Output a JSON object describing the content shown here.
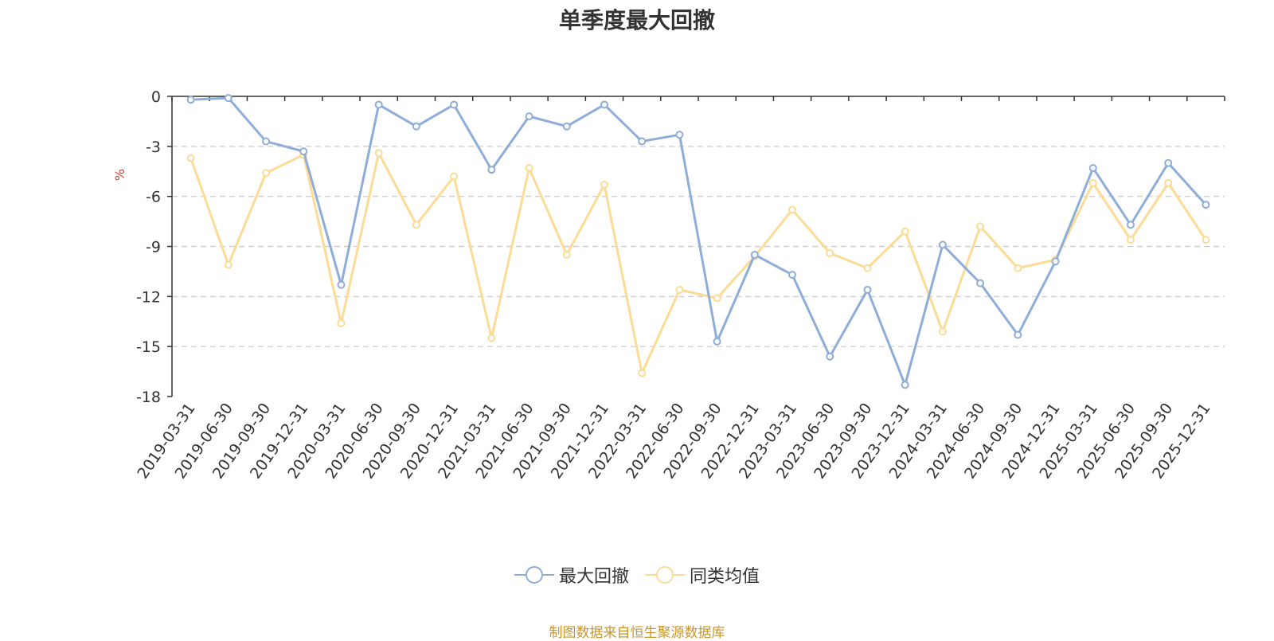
{
  "title": "单季度最大回撤",
  "source_note": "制图数据来自恒生聚源数据库",
  "colors": {
    "series_max_drawdown": "#8fadd9",
    "series_peer_avg": "#fcdb95",
    "unit_label": "#e53935",
    "source_note": "#c8962d",
    "grid": "#c8c8c8",
    "axis": "#333333"
  },
  "chart_data": {
    "type": "line",
    "y_unit": "%",
    "ylim": [
      -18,
      0
    ],
    "yticks": [
      0,
      -3,
      -6,
      -9,
      -12,
      -15,
      -18
    ],
    "grid": "horizontal-dashed",
    "legend_placement": "bottom-center",
    "categories": [
      "2019-03-31",
      "2019-06-30",
      "2019-09-30",
      "2019-12-31",
      "2020-03-31",
      "2020-06-30",
      "2020-09-30",
      "2020-12-31",
      "2021-03-31",
      "2021-06-30",
      "2021-09-30",
      "2021-12-31",
      "2022-03-31",
      "2022-06-30",
      "2022-09-30",
      "2022-12-31",
      "2023-03-31",
      "2023-06-30",
      "2023-09-30",
      "2023-12-31",
      "2024-03-31",
      "2024-06-30",
      "2024-09-30",
      "2024-12-31",
      "2025-03-31",
      "2025-06-30",
      "2025-09-30",
      "2025-12-31"
    ],
    "series": [
      {
        "name": "最大回撤",
        "values": [
          -0.2,
          -0.1,
          -2.7,
          -3.3,
          -11.3,
          -0.5,
          -1.8,
          -0.5,
          -4.4,
          -1.2,
          -1.8,
          -0.5,
          -2.7,
          -2.3,
          -14.7,
          -9.5,
          -10.7,
          -15.6,
          -11.6,
          -17.3,
          -8.9,
          -11.2,
          -14.3,
          -9.9,
          -4.3,
          -7.7,
          -4.0,
          -6.5
        ]
      },
      {
        "name": "同类均值",
        "values": [
          -3.7,
          -10.1,
          -4.6,
          -3.5,
          -13.6,
          -3.4,
          -7.7,
          -4.8,
          -14.5,
          -4.3,
          -9.5,
          -5.3,
          -16.6,
          -11.6,
          -12.1,
          -9.6,
          -6.8,
          -9.4,
          -10.3,
          -8.1,
          -14.1,
          -7.8,
          -10.3,
          -9.8,
          -5.2,
          -8.6,
          -5.2,
          -8.6
        ]
      }
    ]
  }
}
